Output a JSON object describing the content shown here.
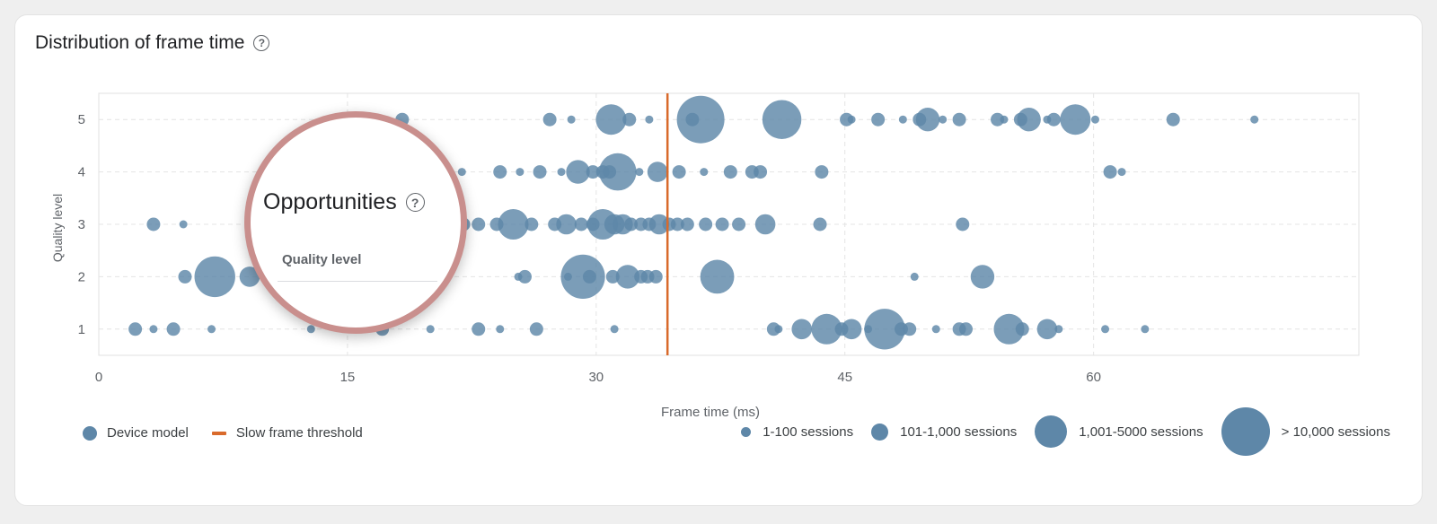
{
  "card": {
    "title": "Distribution of frame time",
    "title_icon": "help-circle-icon"
  },
  "magnifier": {
    "title": "Opportunities",
    "title_icon": "help-circle-icon",
    "subtitle": "Quality level"
  },
  "legend": {
    "device_model": "Device model",
    "slow_frame_threshold": "Slow frame threshold",
    "sizes": [
      {
        "label": "1-100 sessions",
        "size": 1
      },
      {
        "label": "101-1,000 sessions",
        "size": 2
      },
      {
        "label": "1,001-5000 sessions",
        "size": 3
      },
      {
        "label": "> 10,000 sessions",
        "size": 4
      }
    ]
  },
  "colors": {
    "bubble": "#5e87a8",
    "threshold": "#d96a2b",
    "grid": "#e4e4e4"
  },
  "chart_data": {
    "type": "scatter",
    "title": "Distribution of frame time",
    "xlabel": "Frame time (ms)",
    "ylabel": "Quality level",
    "xlim": [
      0,
      76
    ],
    "ylim": [
      0.5,
      5.5
    ],
    "x_ticks": [
      0,
      15,
      30,
      45,
      60
    ],
    "y_ticks": [
      1,
      2,
      3,
      4,
      5
    ],
    "threshold_x": 34.3,
    "points": [
      {
        "x": 18.3,
        "y": 5,
        "s": 2
      },
      {
        "x": 27.2,
        "y": 5,
        "s": 2
      },
      {
        "x": 28.5,
        "y": 5,
        "s": 1
      },
      {
        "x": 30.9,
        "y": 5,
        "s": 3
      },
      {
        "x": 32.0,
        "y": 5,
        "s": 2
      },
      {
        "x": 33.2,
        "y": 5,
        "s": 1
      },
      {
        "x": 35.8,
        "y": 5,
        "s": 2
      },
      {
        "x": 36.3,
        "y": 5,
        "s": 4
      },
      {
        "x": 41.2,
        "y": 5,
        "s": 3.5
      },
      {
        "x": 45.1,
        "y": 5,
        "s": 2
      },
      {
        "x": 45.4,
        "y": 5,
        "s": 1
      },
      {
        "x": 47.0,
        "y": 5,
        "s": 2
      },
      {
        "x": 48.5,
        "y": 5,
        "s": 1
      },
      {
        "x": 49.5,
        "y": 5,
        "s": 2
      },
      {
        "x": 50.0,
        "y": 5,
        "s": 2.6
      },
      {
        "x": 50.9,
        "y": 5,
        "s": 1
      },
      {
        "x": 51.9,
        "y": 5,
        "s": 2
      },
      {
        "x": 54.2,
        "y": 5,
        "s": 2
      },
      {
        "x": 54.6,
        "y": 5,
        "s": 1
      },
      {
        "x": 55.6,
        "y": 5,
        "s": 2
      },
      {
        "x": 56.1,
        "y": 5,
        "s": 2.6
      },
      {
        "x": 57.2,
        "y": 5,
        "s": 1
      },
      {
        "x": 57.6,
        "y": 5,
        "s": 2
      },
      {
        "x": 58.9,
        "y": 5,
        "s": 3
      },
      {
        "x": 60.1,
        "y": 5,
        "s": 1
      },
      {
        "x": 64.8,
        "y": 5,
        "s": 2
      },
      {
        "x": 69.7,
        "y": 5,
        "s": 1
      },
      {
        "x": 20.8,
        "y": 4,
        "s": 2
      },
      {
        "x": 21.9,
        "y": 4,
        "s": 1
      },
      {
        "x": 24.2,
        "y": 4,
        "s": 2
      },
      {
        "x": 25.4,
        "y": 4,
        "s": 1
      },
      {
        "x": 26.6,
        "y": 4,
        "s": 2
      },
      {
        "x": 27.9,
        "y": 4,
        "s": 1
      },
      {
        "x": 28.9,
        "y": 4,
        "s": 2.6
      },
      {
        "x": 29.8,
        "y": 4,
        "s": 2
      },
      {
        "x": 30.4,
        "y": 4,
        "s": 2
      },
      {
        "x": 30.8,
        "y": 4,
        "s": 2
      },
      {
        "x": 31.3,
        "y": 4,
        "s": 3.4
      },
      {
        "x": 32.6,
        "y": 4,
        "s": 1
      },
      {
        "x": 33.7,
        "y": 4,
        "s": 2.4
      },
      {
        "x": 35.0,
        "y": 4,
        "s": 2
      },
      {
        "x": 36.5,
        "y": 4,
        "s": 1
      },
      {
        "x": 38.1,
        "y": 4,
        "s": 2
      },
      {
        "x": 39.4,
        "y": 4,
        "s": 2
      },
      {
        "x": 39.9,
        "y": 4,
        "s": 2
      },
      {
        "x": 43.6,
        "y": 4,
        "s": 2
      },
      {
        "x": 61.0,
        "y": 4,
        "s": 2
      },
      {
        "x": 61.7,
        "y": 4,
        "s": 1
      },
      {
        "x": 3.3,
        "y": 3,
        "s": 2
      },
      {
        "x": 5.1,
        "y": 3,
        "s": 1
      },
      {
        "x": 22.0,
        "y": 3,
        "s": 2
      },
      {
        "x": 22.9,
        "y": 3,
        "s": 2
      },
      {
        "x": 24.0,
        "y": 3,
        "s": 2
      },
      {
        "x": 25.0,
        "y": 3,
        "s": 3
      },
      {
        "x": 26.1,
        "y": 3,
        "s": 2
      },
      {
        "x": 27.5,
        "y": 3,
        "s": 2
      },
      {
        "x": 28.2,
        "y": 3,
        "s": 2.4
      },
      {
        "x": 29.1,
        "y": 3,
        "s": 2
      },
      {
        "x": 29.8,
        "y": 3,
        "s": 2
      },
      {
        "x": 30.4,
        "y": 3,
        "s": 3
      },
      {
        "x": 31.1,
        "y": 3,
        "s": 2.4
      },
      {
        "x": 31.6,
        "y": 3,
        "s": 2.4
      },
      {
        "x": 32.1,
        "y": 3,
        "s": 2
      },
      {
        "x": 32.7,
        "y": 3,
        "s": 2
      },
      {
        "x": 33.2,
        "y": 3,
        "s": 2
      },
      {
        "x": 33.8,
        "y": 3,
        "s": 2.4
      },
      {
        "x": 34.4,
        "y": 3,
        "s": 2
      },
      {
        "x": 34.9,
        "y": 3,
        "s": 2
      },
      {
        "x": 35.5,
        "y": 3,
        "s": 2
      },
      {
        "x": 36.6,
        "y": 3,
        "s": 2
      },
      {
        "x": 37.6,
        "y": 3,
        "s": 2
      },
      {
        "x": 38.6,
        "y": 3,
        "s": 2
      },
      {
        "x": 40.2,
        "y": 3,
        "s": 2.4
      },
      {
        "x": 43.5,
        "y": 3,
        "s": 2
      },
      {
        "x": 52.1,
        "y": 3,
        "s": 2
      },
      {
        "x": 5.2,
        "y": 2,
        "s": 2
      },
      {
        "x": 7.0,
        "y": 2,
        "s": 3.6
      },
      {
        "x": 9.1,
        "y": 2,
        "s": 2.4
      },
      {
        "x": 25.3,
        "y": 2,
        "s": 1
      },
      {
        "x": 25.7,
        "y": 2,
        "s": 2
      },
      {
        "x": 28.3,
        "y": 2,
        "s": 1
      },
      {
        "x": 29.2,
        "y": 2,
        "s": 3.8
      },
      {
        "x": 29.6,
        "y": 2,
        "s": 2
      },
      {
        "x": 31.0,
        "y": 2,
        "s": 2
      },
      {
        "x": 31.9,
        "y": 2,
        "s": 2.6
      },
      {
        "x": 32.7,
        "y": 2,
        "s": 2
      },
      {
        "x": 33.1,
        "y": 2,
        "s": 2
      },
      {
        "x": 33.6,
        "y": 2,
        "s": 2
      },
      {
        "x": 37.3,
        "y": 2,
        "s": 3.2
      },
      {
        "x": 49.2,
        "y": 2,
        "s": 1
      },
      {
        "x": 53.3,
        "y": 2,
        "s": 2.6
      },
      {
        "x": 2.2,
        "y": 1,
        "s": 2
      },
      {
        "x": 3.3,
        "y": 1,
        "s": 1
      },
      {
        "x": 4.5,
        "y": 1,
        "s": 2
      },
      {
        "x": 6.8,
        "y": 1,
        "s": 1
      },
      {
        "x": 12.8,
        "y": 1,
        "s": 1
      },
      {
        "x": 17.1,
        "y": 1,
        "s": 2
      },
      {
        "x": 20.0,
        "y": 1,
        "s": 1
      },
      {
        "x": 22.9,
        "y": 1,
        "s": 2
      },
      {
        "x": 24.2,
        "y": 1,
        "s": 1
      },
      {
        "x": 26.4,
        "y": 1,
        "s": 2
      },
      {
        "x": 31.1,
        "y": 1,
        "s": 1
      },
      {
        "x": 40.7,
        "y": 1,
        "s": 2
      },
      {
        "x": 41.0,
        "y": 1,
        "s": 1
      },
      {
        "x": 42.4,
        "y": 1,
        "s": 2.4
      },
      {
        "x": 43.9,
        "y": 1,
        "s": 3
      },
      {
        "x": 44.8,
        "y": 1,
        "s": 2
      },
      {
        "x": 45.4,
        "y": 1,
        "s": 2.4
      },
      {
        "x": 46.4,
        "y": 1,
        "s": 1
      },
      {
        "x": 47.4,
        "y": 1,
        "s": 3.6
      },
      {
        "x": 48.4,
        "y": 1,
        "s": 2
      },
      {
        "x": 48.9,
        "y": 1,
        "s": 2
      },
      {
        "x": 50.5,
        "y": 1,
        "s": 1
      },
      {
        "x": 51.9,
        "y": 1,
        "s": 2
      },
      {
        "x": 52.3,
        "y": 1,
        "s": 2
      },
      {
        "x": 54.9,
        "y": 1,
        "s": 3
      },
      {
        "x": 55.7,
        "y": 1,
        "s": 2
      },
      {
        "x": 57.2,
        "y": 1,
        "s": 2.4
      },
      {
        "x": 57.9,
        "y": 1,
        "s": 1
      },
      {
        "x": 60.7,
        "y": 1,
        "s": 1
      },
      {
        "x": 63.1,
        "y": 1,
        "s": 1
      }
    ]
  }
}
